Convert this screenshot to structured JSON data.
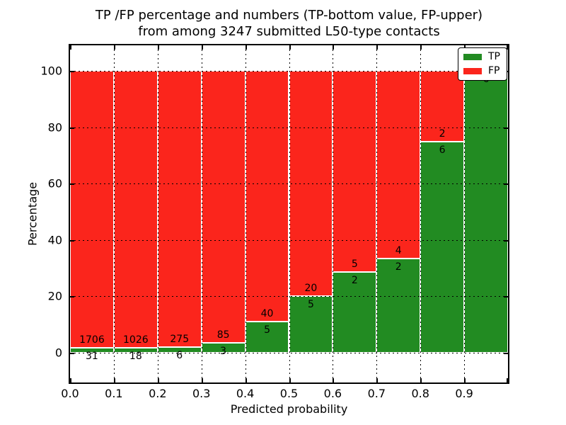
{
  "figure": {
    "title_line1": "TP /FP percentage and numbers (TP-bottom value, FP-upper)",
    "title_line2": "from among 3247 submitted L50-type contacts"
  },
  "chart_data": {
    "type": "bar",
    "stacked": true,
    "orientation": "vertical",
    "title": "TP /FP percentage and numbers (TP-bottom value, FP-upper)\nfrom among 3247 submitted L50-type contacts",
    "xlabel": "Predicted probability",
    "ylabel": "Percentage",
    "total_submitted_contacts": 3247,
    "xlim": [
      0.0,
      1.0
    ],
    "ylim": [
      -11,
      110
    ],
    "bin_width": 0.1,
    "x_tick_labels": [
      "0.0",
      "0.1",
      "0.2",
      "0.3",
      "0.4",
      "0.5",
      "0.6",
      "0.7",
      "0.8",
      "0.9"
    ],
    "y_ticks": [
      0,
      20,
      40,
      60,
      80,
      100
    ],
    "categories": [
      "0.0-0.1",
      "0.1-0.2",
      "0.2-0.3",
      "0.3-0.4",
      "0.4-0.5",
      "0.5-0.6",
      "0.6-0.7",
      "0.7-0.8",
      "0.8-0.9",
      "0.9-1.0"
    ],
    "series": [
      {
        "name": "TP",
        "color": "#228b22",
        "counts": [
          31,
          18,
          6,
          3,
          5,
          5,
          2,
          2,
          6,
          6
        ]
      },
      {
        "name": "FP",
        "color": "#fb251c",
        "counts": [
          1706,
          1026,
          275,
          85,
          40,
          20,
          5,
          4,
          2,
          0
        ]
      }
    ],
    "tp_percent_of_bin": [
      1.78,
      1.72,
      2.14,
      3.41,
      11.11,
      20.0,
      28.57,
      33.33,
      75.0,
      100.0
    ],
    "annotation_rule": "FP count printed above TP-bar top edge, TP count printed below it",
    "legend": {
      "position": "upper right",
      "entries": [
        "TP",
        "FP"
      ]
    },
    "grid": {
      "horizontal": true,
      "vertical": true,
      "style": "dotted",
      "color": "#000000"
    }
  }
}
